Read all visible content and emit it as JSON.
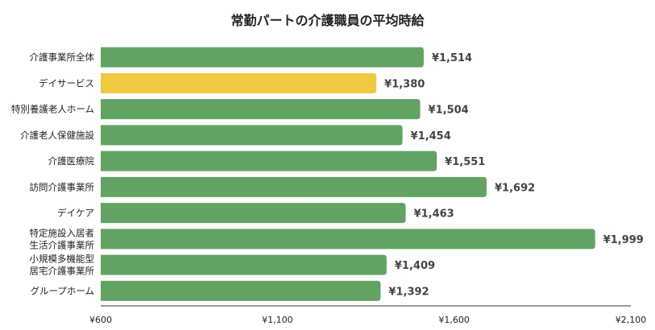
{
  "chart_data": {
    "type": "bar",
    "orientation": "horizontal",
    "title": "常勤パートの介護職員の平均時給",
    "categories": [
      [
        "介護事業所全体"
      ],
      [
        "デイサービス"
      ],
      [
        "特別養護老人ホーム"
      ],
      [
        "介護老人保健施設"
      ],
      [
        "介護医療院"
      ],
      [
        "訪問介護事業所"
      ],
      [
        "デイケア"
      ],
      [
        "特定施設入居者",
        "生活介護事業所"
      ],
      [
        "小規模多機能型",
        "居宅介護事業所"
      ],
      [
        "グループホーム"
      ]
    ],
    "values": [
      1514,
      1380,
      1504,
      1454,
      1551,
      1692,
      1463,
      1999,
      1409,
      1392
    ],
    "data_labels": [
      "¥1,514",
      "¥1,380",
      "¥1,504",
      "¥1,454",
      "¥1,551",
      "¥1,692",
      "¥1,463",
      "¥1,999",
      "¥1,409",
      "¥1,392"
    ],
    "xlim": [
      600,
      2100
    ],
    "xticks": [
      600,
      1100,
      1600,
      2100
    ],
    "xtick_labels": [
      "¥600",
      "¥1,100",
      "¥1,600",
      "¥2,100"
    ],
    "highlight_index": 1,
    "colors": {
      "default": "#62a362",
      "highlight": "#f0c841"
    },
    "grid": false,
    "legend": "none"
  }
}
